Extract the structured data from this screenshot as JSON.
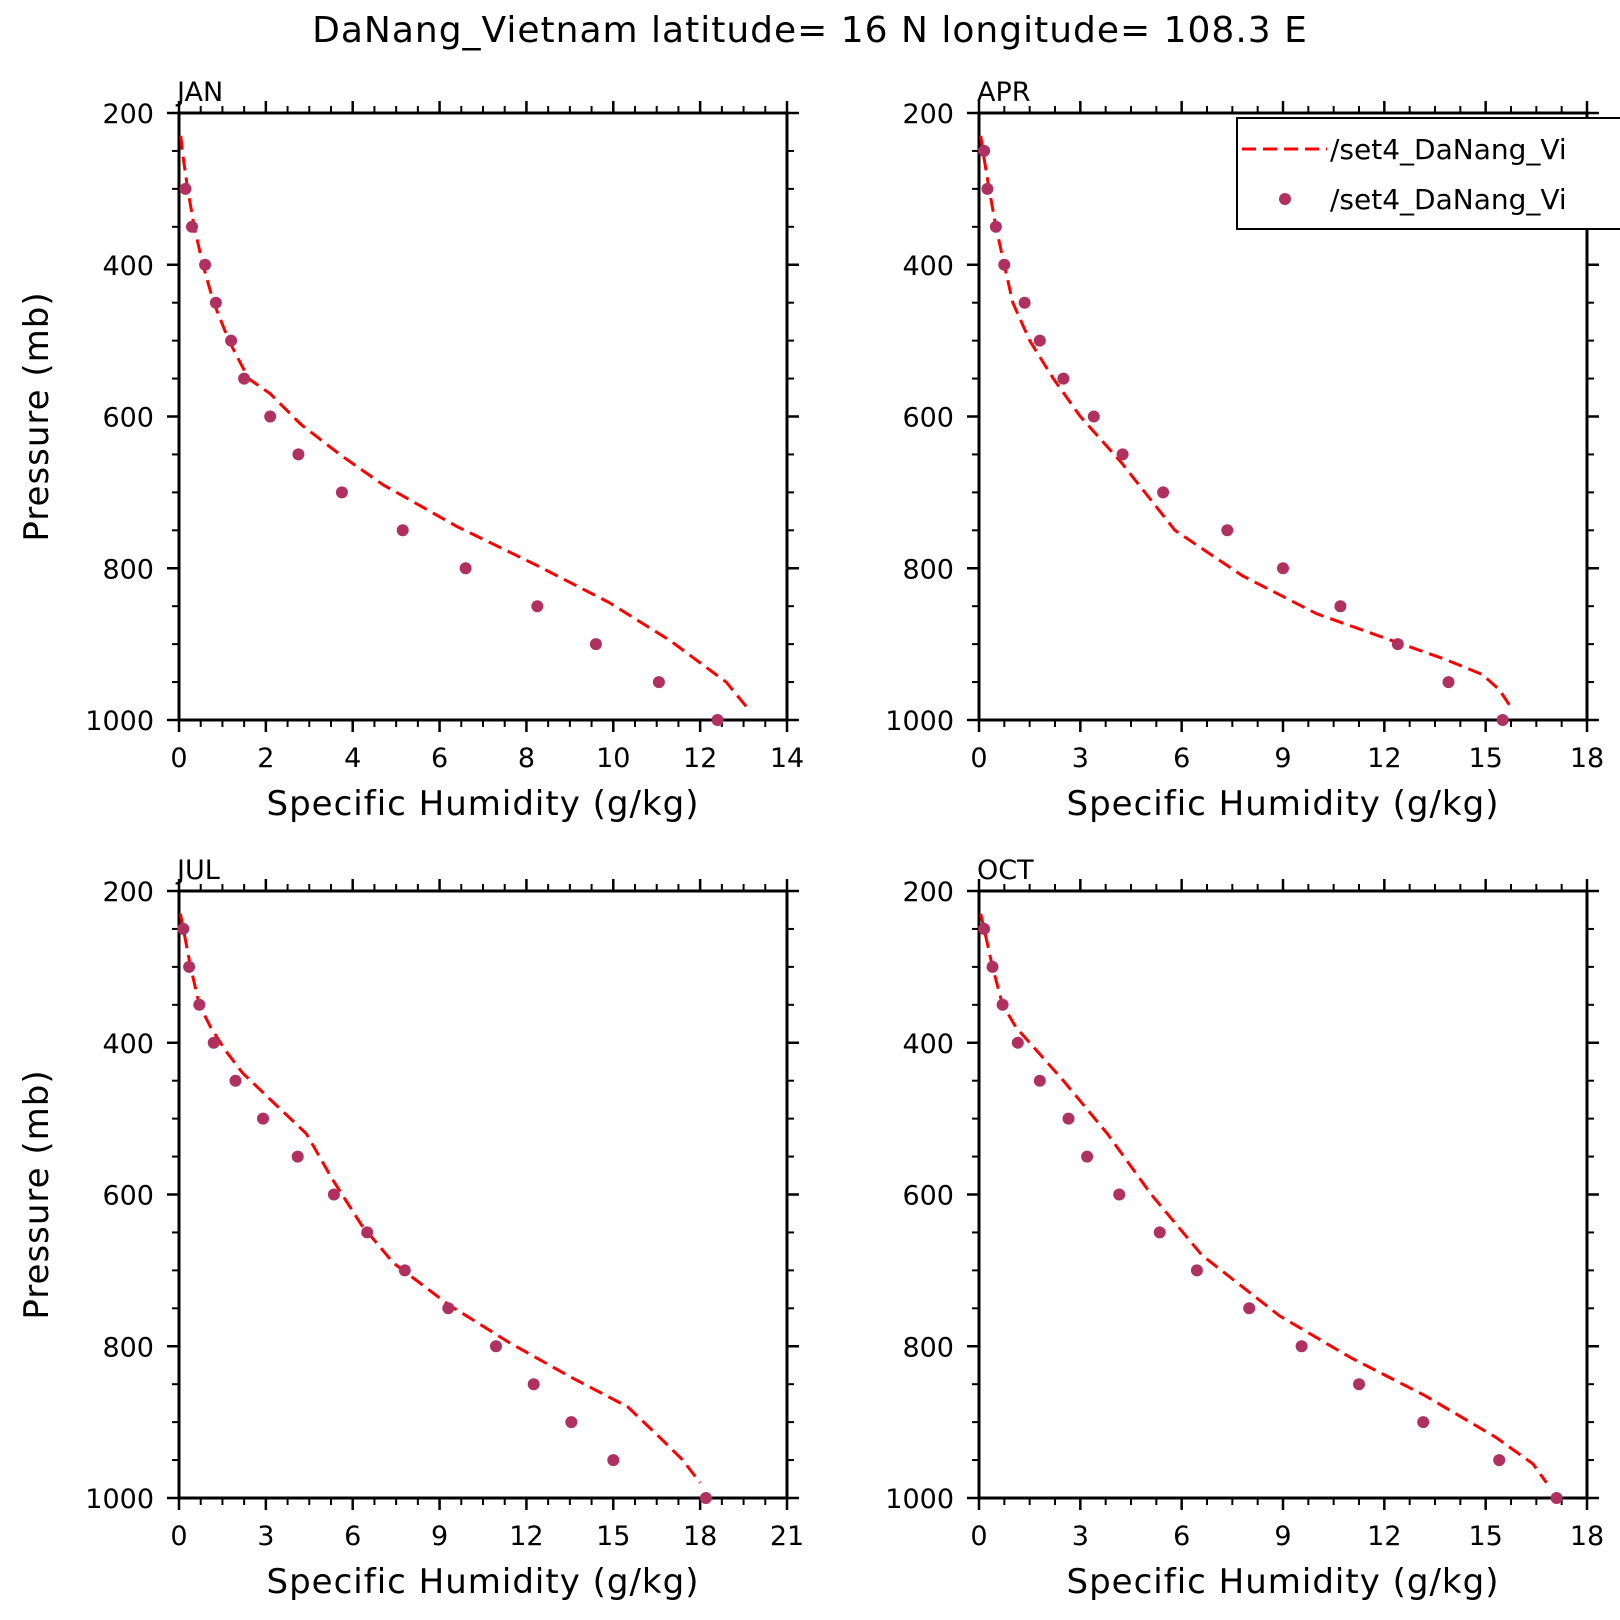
{
  "title": "DaNang_Vietnam  latitude= 16 N longitude= 108.3 E",
  "colors": {
    "model_line": "#ff0000",
    "obs_marker": "#b03060",
    "frame": "#000000"
  },
  "legend": {
    "placement": "top-right of APR panel (clipped)",
    "entries": [
      {
        "label": "/set4_DaNang_Vi",
        "style": "dashed-line",
        "color": "#ff0000"
      },
      {
        "label": "/set4_DaNang_Vi",
        "style": "marker",
        "color": "#b03060"
      }
    ]
  },
  "chart_data": [
    {
      "type": "line",
      "panel": "JAN",
      "title": "JAN",
      "xlabel": "Specific Humidity (g/kg)",
      "ylabel": "Pressure (mb)",
      "xlim": [
        0,
        14
      ],
      "ylim": [
        1000,
        200
      ],
      "y_inverted": true,
      "xticks": [
        0,
        2,
        4,
        6,
        8,
        10,
        12,
        14
      ],
      "yticks": [
        200,
        400,
        600,
        800,
        1000
      ],
      "series": [
        {
          "style": "dashed-line",
          "x": [
            0.04,
            0.1,
            0.2,
            0.35,
            0.55,
            0.8,
            1.15,
            1.6,
            2.1,
            2.8,
            3.7,
            4.7,
            6.4,
            8.2,
            9.9,
            11.3,
            12.6,
            13.1
          ],
          "y": [
            230,
            260,
            300,
            350,
            400,
            450,
            500,
            550,
            570,
            610,
            650,
            690,
            745,
            795,
            845,
            895,
            950,
            985
          ]
        },
        {
          "style": "marker",
          "x": [
            0.15,
            0.3,
            0.6,
            0.85,
            1.2,
            1.5,
            2.1,
            2.75,
            3.75,
            5.15,
            6.6,
            8.25,
            9.6,
            11.05,
            12.4
          ],
          "y": [
            300,
            350,
            400,
            450,
            500,
            550,
            600,
            650,
            700,
            750,
            800,
            850,
            900,
            950,
            1000
          ]
        }
      ]
    },
    {
      "type": "line",
      "panel": "APR",
      "title": "APR",
      "xlabel": "Specific Humidity (g/kg)",
      "ylabel": "",
      "xlim": [
        0,
        18
      ],
      "ylim": [
        1000,
        200
      ],
      "y_inverted": true,
      "xticks": [
        0,
        3,
        6,
        9,
        12,
        15,
        18
      ],
      "yticks": [
        200,
        400,
        600,
        800,
        1000
      ],
      "series": [
        {
          "style": "dashed-line",
          "x": [
            0.05,
            0.15,
            0.3,
            0.5,
            0.75,
            1.0,
            1.5,
            2.2,
            3.0,
            4.2,
            5.8,
            7.8,
            10.0,
            12.2,
            13.8,
            14.9,
            15.4,
            15.7
          ],
          "y": [
            230,
            260,
            300,
            350,
            400,
            450,
            500,
            550,
            600,
            660,
            750,
            810,
            860,
            895,
            920,
            940,
            960,
            980
          ]
        },
        {
          "style": "marker",
          "x": [
            0.15,
            0.25,
            0.5,
            0.75,
            1.35,
            1.8,
            2.5,
            3.4,
            4.25,
            5.45,
            7.35,
            9.0,
            10.7,
            12.4,
            13.9,
            15.5
          ],
          "y": [
            250,
            300,
            350,
            400,
            450,
            500,
            550,
            600,
            650,
            700,
            750,
            800,
            850,
            900,
            950,
            1000
          ]
        }
      ]
    },
    {
      "type": "line",
      "panel": "JUL",
      "title": "JUL",
      "xlabel": "Specific Humidity (g/kg)",
      "ylabel": "Pressure (mb)",
      "xlim": [
        0,
        21
      ],
      "ylim": [
        1000,
        200
      ],
      "y_inverted": true,
      "xticks": [
        0,
        3,
        6,
        9,
        12,
        15,
        18,
        21
      ],
      "yticks": [
        200,
        400,
        600,
        800,
        1000
      ],
      "series": [
        {
          "style": "dashed-line",
          "x": [
            0.05,
            0.2,
            0.4,
            0.7,
            1.1,
            1.6,
            2.2,
            3.3,
            4.4,
            5.3,
            6.3,
            7.4,
            9.3,
            11.4,
            13.5,
            15.5,
            16.6,
            17.4,
            18.0
          ],
          "y": [
            230,
            260,
            300,
            350,
            380,
            410,
            440,
            480,
            520,
            580,
            640,
            690,
            745,
            795,
            840,
            880,
            920,
            950,
            980
          ]
        },
        {
          "style": "marker",
          "x": [
            0.15,
            0.35,
            0.7,
            1.2,
            1.95,
            2.9,
            4.1,
            5.35,
            6.5,
            7.8,
            9.3,
            10.95,
            12.25,
            13.55,
            15.0,
            18.2
          ],
          "y": [
            250,
            300,
            350,
            400,
            450,
            500,
            550,
            600,
            650,
            700,
            750,
            800,
            850,
            900,
            950,
            1000
          ]
        }
      ]
    },
    {
      "type": "line",
      "panel": "OCT",
      "title": "OCT",
      "xlabel": "Specific Humidity (g/kg)",
      "ylabel": "",
      "xlim": [
        0,
        18
      ],
      "ylim": [
        1000,
        200
      ],
      "y_inverted": true,
      "xticks": [
        0,
        3,
        6,
        9,
        12,
        15,
        18
      ],
      "yticks": [
        200,
        400,
        600,
        800,
        1000
      ],
      "series": [
        {
          "style": "dashed-line",
          "x": [
            0.05,
            0.2,
            0.4,
            0.7,
            1.1,
            1.7,
            2.5,
            3.8,
            5.1,
            6.6,
            8.9,
            11.0,
            13.2,
            15.3,
            16.4,
            16.8
          ],
          "y": [
            230,
            260,
            300,
            350,
            380,
            410,
            450,
            520,
            600,
            680,
            760,
            815,
            865,
            920,
            955,
            980
          ]
        },
        {
          "style": "marker",
          "x": [
            0.15,
            0.4,
            0.7,
            1.15,
            1.8,
            2.65,
            3.2,
            4.15,
            5.35,
            6.45,
            8.0,
            9.55,
            11.25,
            13.15,
            15.4,
            17.1
          ],
          "y": [
            250,
            300,
            350,
            400,
            450,
            500,
            550,
            600,
            650,
            700,
            750,
            800,
            850,
            900,
            950,
            1000
          ]
        }
      ]
    }
  ]
}
